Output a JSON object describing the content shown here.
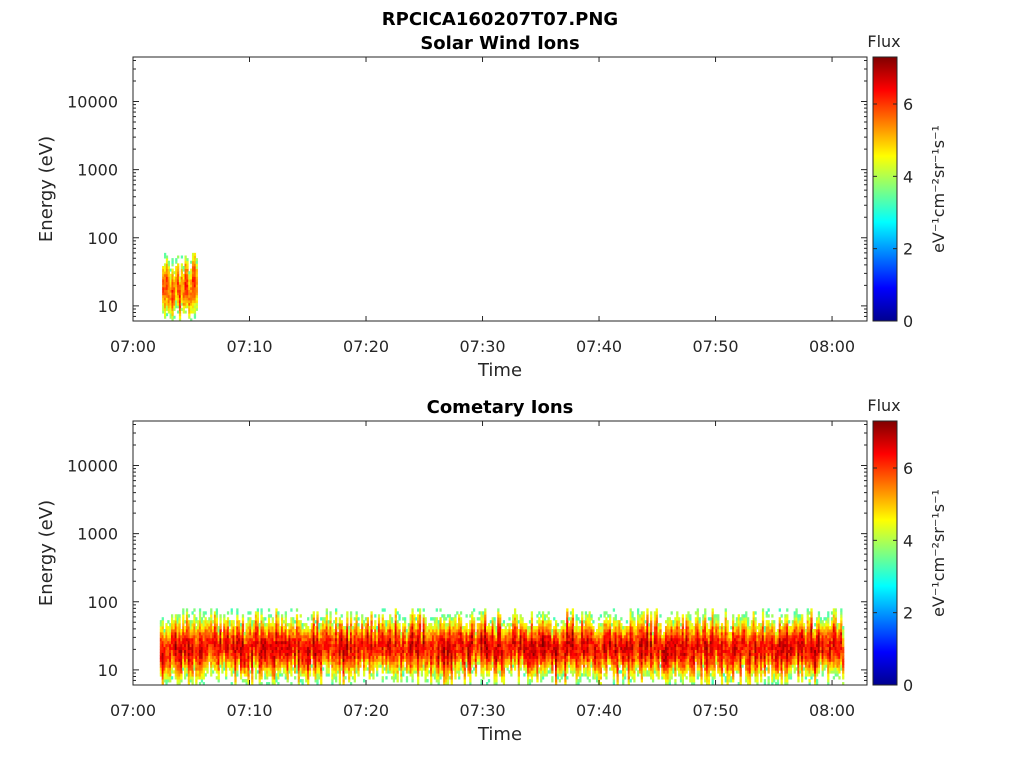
{
  "figure": {
    "title": "RPCICA160207T07.PNG"
  },
  "chart_data": [
    {
      "type": "heatmap",
      "title": "Solar Wind Ions",
      "xlabel": "Time",
      "ylabel": "Energy (eV)",
      "x_ticks": [
        "07:00",
        "07:10",
        "07:20",
        "07:30",
        "07:40",
        "07:50",
        "08:00"
      ],
      "x_range_minutes": [
        0,
        63
      ],
      "y_scale": "log",
      "y_ticks": [
        "10",
        "100",
        "1000",
        "10000"
      ],
      "y_range": [
        6,
        45000
      ],
      "grid": false,
      "colorbar": {
        "title": "Flux",
        "label": "eV⁻¹cm⁻²sr⁻¹s⁻¹",
        "ticks": [
          "0",
          "2",
          "4",
          "6"
        ],
        "range": [
          0,
          7.3
        ],
        "colormap": "jet"
      },
      "data_regions": [
        {
          "t_start_min": 2.5,
          "t_end_min": 5.5,
          "energy_low_eV": 6,
          "energy_high_eV": 60,
          "peak_energy_eV": 17,
          "peak_flux": 6.2
        }
      ]
    },
    {
      "type": "heatmap",
      "title": "Cometary Ions",
      "xlabel": "Time",
      "ylabel": "Energy (eV)",
      "x_ticks": [
        "07:00",
        "07:10",
        "07:20",
        "07:30",
        "07:40",
        "07:50",
        "08:00"
      ],
      "x_range_minutes": [
        0,
        63
      ],
      "y_scale": "log",
      "y_ticks": [
        "10",
        "100",
        "1000",
        "10000"
      ],
      "y_range": [
        6,
        45000
      ],
      "grid": false,
      "colorbar": {
        "title": "Flux",
        "label": "eV⁻¹cm⁻²sr⁻¹s⁻¹",
        "ticks": [
          "0",
          "2",
          "4",
          "6"
        ],
        "range": [
          0,
          7.3
        ],
        "colormap": "jet"
      },
      "data_regions": [
        {
          "t_start_min": 2.3,
          "t_end_min": 61.0,
          "energy_low_eV": 6,
          "energy_high_eV": 80,
          "peak_energy_eV": 20,
          "peak_flux": 7.0
        }
      ]
    }
  ]
}
